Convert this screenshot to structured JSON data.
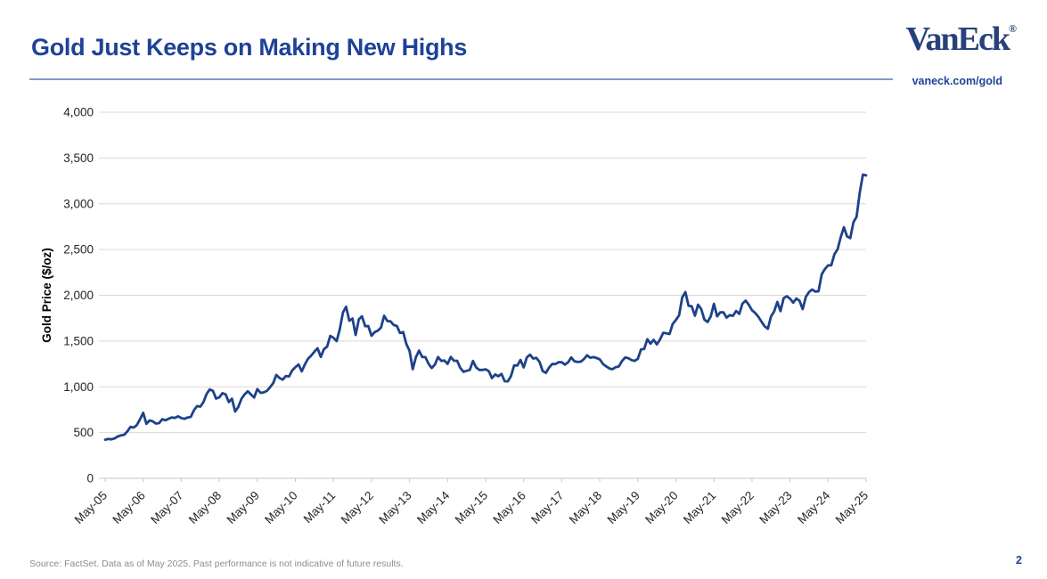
{
  "header": {
    "title": "Gold Just Keeps on Making New Highs",
    "logo_text": "VanEck",
    "logo_registered": "®",
    "site_link": "vaneck.com/gold"
  },
  "footer": {
    "source_note": "Source: FactSet. Data as of May 2025. Past performance is not indicative of future results.",
    "page_number": "2"
  },
  "colors": {
    "title_blue": "#1E4296",
    "logo_navy": "#27417B",
    "line_blue": "#1D4289",
    "rule_blue": "#7E9CC7",
    "gridline": "#D9D9D9",
    "axis_line": "#C6C6C6",
    "axis_text": "#262626",
    "footer_gray": "#8C8C8C"
  },
  "chart_data": {
    "type": "line",
    "title": "",
    "xlabel": "",
    "ylabel": "Gold Price ($/oz)",
    "ylim": [
      0,
      4000
    ],
    "ytick_step": 500,
    "ytick_labels": [
      "0",
      "500",
      "1,000",
      "1,500",
      "2,000",
      "2,500",
      "3,000",
      "3,500",
      "4,000"
    ],
    "grid": "horizontal-only",
    "legend": "none",
    "x_tick_labels": [
      "May-05",
      "May-06",
      "May-07",
      "May-08",
      "May-09",
      "May-10",
      "May-11",
      "May-12",
      "May-13",
      "May-14",
      "May-15",
      "May-16",
      "May-17",
      "May-18",
      "May-19",
      "May-20",
      "May-21",
      "May-22",
      "May-23",
      "May-24",
      "May-25"
    ],
    "series": [
      {
        "name": "Gold Price ($/oz)",
        "start": "May-2005",
        "end": "May-2025",
        "frequency": "monthly",
        "values": [
          422,
          430,
          426,
          437,
          457,
          470,
          476,
          513,
          563,
          555,
          582,
          644,
          716,
          596,
          633,
          623,
          599,
          603,
          646,
          635,
          651,
          665,
          661,
          677,
          659,
          650,
          665,
          672,
          743,
          789,
          783,
          833,
          923,
          971,
          956,
          871,
          885,
          930,
          918,
          833,
          870,
          730,
          780,
          869,
          919,
          952,
          916,
          883,
          975,
          934,
          939,
          955,
          995,
          1040,
          1130,
          1096,
          1078,
          1118,
          1113,
          1179,
          1215,
          1244,
          1169,
          1246,
          1307,
          1342,
          1385,
          1421,
          1327,
          1411,
          1439,
          1556,
          1536,
          1500,
          1628,
          1813,
          1874,
          1722,
          1746,
          1566,
          1737,
          1770,
          1662,
          1664,
          1558,
          1598,
          1614,
          1648,
          1776,
          1719,
          1715,
          1675,
          1664,
          1588,
          1598,
          1469,
          1394,
          1192,
          1323,
          1396,
          1327,
          1324,
          1253,
          1205,
          1244,
          1326,
          1284,
          1288,
          1250,
          1327,
          1285,
          1285,
          1208,
          1164,
          1175,
          1184,
          1283,
          1213,
          1184,
          1184,
          1191,
          1171,
          1095,
          1135,
          1115,
          1142,
          1061,
          1060,
          1118,
          1234,
          1233,
          1293,
          1212,
          1322,
          1351,
          1309,
          1316,
          1273,
          1173,
          1152,
          1210,
          1249,
          1249,
          1268,
          1269,
          1242,
          1267,
          1321,
          1280,
          1271,
          1275,
          1303,
          1345,
          1318,
          1325,
          1315,
          1300,
          1250,
          1224,
          1201,
          1192,
          1215,
          1222,
          1282,
          1321,
          1313,
          1292,
          1283,
          1306,
          1409,
          1414,
          1520,
          1472,
          1513,
          1464,
          1517,
          1589,
          1585,
          1577,
          1686,
          1730,
          1781,
          1976,
          2035,
          1886,
          1879,
          1777,
          1898,
          1848,
          1734,
          1708,
          1768,
          1907,
          1770,
          1814,
          1814,
          1757,
          1783,
          1775,
          1829,
          1797,
          1909,
          1942,
          1897,
          1837,
          1807,
          1766,
          1712,
          1661,
          1634,
          1769,
          1824,
          1928,
          1827,
          1969,
          1990,
          1963,
          1919,
          1965,
          1940,
          1849,
          1984,
          2036,
          2063,
          2040,
          2044,
          2230,
          2286,
          2327,
          2327,
          2448,
          2503,
          2635,
          2744,
          2643,
          2625,
          2798,
          2858,
          3124,
          3319,
          3310
        ]
      }
    ]
  }
}
